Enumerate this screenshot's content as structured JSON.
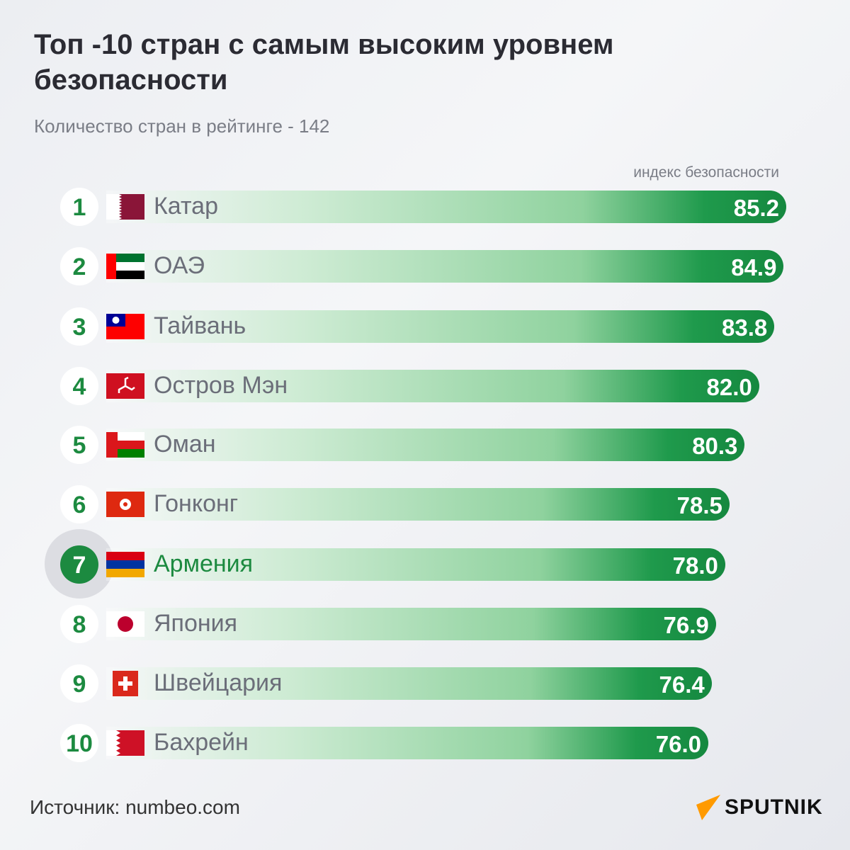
{
  "title": "Топ -10 стран с самым высоким уровнем безопасности",
  "subtitle": "Количество стран в рейтинге - 142",
  "source": "Источник: numbeo.com",
  "logo": "SPUTNIK",
  "chart_data": {
    "type": "bar",
    "orientation": "horizontal",
    "xlabel": "индекс безопасности",
    "highlight": "Армения",
    "colors": {
      "bar": "#15883f",
      "highlight": "#1c8a40",
      "logo_accent": "#ff9a00"
    },
    "rows": [
      {
        "rank": "1",
        "country": "Катар",
        "value": 85.2,
        "label": "85.2",
        "flag": "qatar"
      },
      {
        "rank": "2",
        "country": "ОАЭ",
        "value": 84.9,
        "label": "84.9",
        "flag": "uae"
      },
      {
        "rank": "3",
        "country": "Тайвань",
        "value": 83.8,
        "label": "83.8",
        "flag": "taiwan"
      },
      {
        "rank": "4",
        "country": "Остров Мэн",
        "value": 82.0,
        "label": "82.0",
        "flag": "isle-of-man"
      },
      {
        "rank": "5",
        "country": "Оман",
        "value": 80.3,
        "label": "80.3",
        "flag": "oman"
      },
      {
        "rank": "6",
        "country": "Гонконг",
        "value": 78.5,
        "label": "78.5",
        "flag": "hong-kong"
      },
      {
        "rank": "7",
        "country": "Армения",
        "value": 78.0,
        "label": "78.0",
        "flag": "armenia"
      },
      {
        "rank": "8",
        "country": "Япония",
        "value": 76.9,
        "label": "76.9",
        "flag": "japan"
      },
      {
        "rank": "9",
        "country": "Швейцария",
        "value": 76.4,
        "label": "76.4",
        "flag": "switzerland"
      },
      {
        "rank": "10",
        "country": "Бахрейн",
        "value": 76.0,
        "label": "76.0",
        "flag": "bahrain"
      }
    ]
  }
}
